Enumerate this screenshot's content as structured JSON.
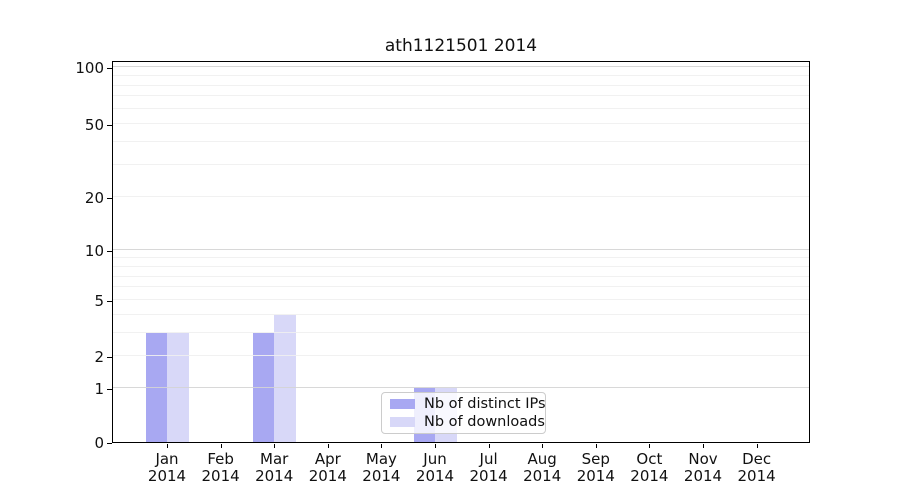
{
  "chart_data": {
    "type": "bar",
    "title": "ath1121501 2014",
    "categories": [
      "Jan",
      "Feb",
      "Mar",
      "Apr",
      "May",
      "Jun",
      "Jul",
      "Aug",
      "Sep",
      "Oct",
      "Nov",
      "Dec"
    ],
    "category_year": "2014",
    "series": [
      {
        "name": "Nb of distinct IPs",
        "color": "#a8a8f2",
        "values": [
          3,
          0,
          3,
          0,
          0,
          1,
          0,
          0,
          0,
          0,
          0,
          0
        ]
      },
      {
        "name": "Nb of downloads",
        "color": "#d8d8f8",
        "values": [
          3,
          0,
          4,
          0,
          0,
          1,
          0,
          0,
          0,
          0,
          0,
          0
        ]
      }
    ],
    "y_axis": {
      "scale": "symlog",
      "tick_values": [
        0,
        1,
        2,
        5,
        10,
        20,
        50,
        100
      ],
      "minor_gridline_values": [
        2,
        3,
        4,
        5,
        6,
        7,
        8,
        9,
        20,
        30,
        40,
        50,
        60,
        70,
        80,
        90
      ],
      "major_gridline_values": [
        1,
        10,
        100
      ],
      "ylim": [
        0,
        110
      ]
    },
    "x_axis": {
      "label_line2": "2014"
    },
    "legend_position": "lower center",
    "grid": true,
    "colors": {
      "minor_grid": "#efefef",
      "major_grid": "#d4d4d4",
      "spine": "#000000",
      "background": "#ffffff"
    }
  }
}
